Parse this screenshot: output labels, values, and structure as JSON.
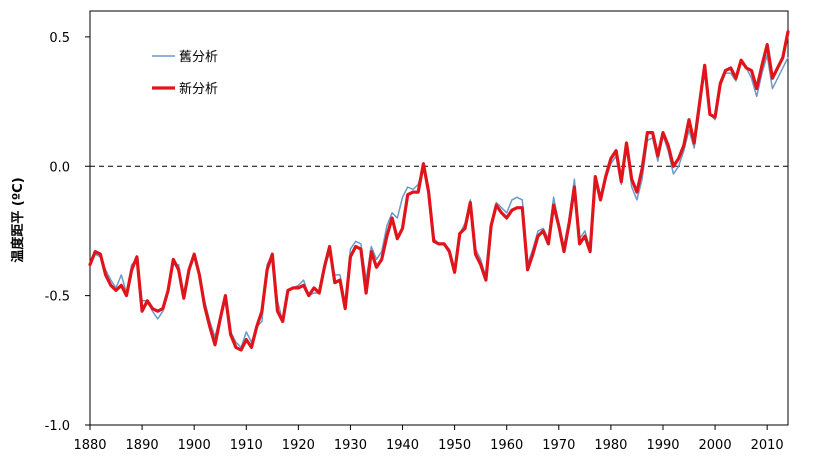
{
  "chart_data": {
    "type": "line",
    "title": "",
    "xlabel": "",
    "ylabel": "温度距平 (ºC)",
    "xlim": [
      1880,
      2014
    ],
    "ylim": [
      -1.0,
      0.6
    ],
    "x_ticks": [
      1880,
      1890,
      1900,
      1910,
      1920,
      1930,
      1940,
      1950,
      1960,
      1970,
      1980,
      1990,
      2000,
      2010
    ],
    "y_ticks": [
      {
        "value": 0.5,
        "label": "0.5"
      },
      {
        "value": 0.0,
        "label": "0.0"
      },
      {
        "value": -0.5,
        "label": "-0.5"
      },
      {
        "value": -1.0,
        "label": "-1.0"
      }
    ],
    "reference_line": {
      "y": 0.0,
      "style": "dashed",
      "color": "#000000"
    },
    "legend_position": "top-left",
    "grid": false,
    "series": [
      {
        "name": "舊分析",
        "color": "#6a9ac8",
        "points": [
          [
            1880,
            -0.38
          ],
          [
            1881,
            -0.34
          ],
          [
            1882,
            -0.35
          ],
          [
            1883,
            -0.4
          ],
          [
            1884,
            -0.44
          ],
          [
            1885,
            -0.47
          ],
          [
            1886,
            -0.42
          ],
          [
            1887,
            -0.49
          ],
          [
            1888,
            -0.38
          ],
          [
            1889,
            -0.36
          ],
          [
            1890,
            -0.52
          ],
          [
            1891,
            -0.52
          ],
          [
            1892,
            -0.56
          ],
          [
            1893,
            -0.59
          ],
          [
            1894,
            -0.56
          ],
          [
            1895,
            -0.49
          ],
          [
            1896,
            -0.38
          ],
          [
            1897,
            -0.38
          ],
          [
            1898,
            -0.5
          ],
          [
            1899,
            -0.4
          ],
          [
            1900,
            -0.34
          ],
          [
            1901,
            -0.42
          ],
          [
            1902,
            -0.52
          ],
          [
            1903,
            -0.6
          ],
          [
            1904,
            -0.66
          ],
          [
            1905,
            -0.58
          ],
          [
            1906,
            -0.5
          ],
          [
            1907,
            -0.64
          ],
          [
            1908,
            -0.68
          ],
          [
            1909,
            -0.7
          ],
          [
            1910,
            -0.64
          ],
          [
            1911,
            -0.68
          ],
          [
            1912,
            -0.62
          ],
          [
            1913,
            -0.6
          ],
          [
            1914,
            -0.38
          ],
          [
            1915,
            -0.34
          ],
          [
            1916,
            -0.52
          ],
          [
            1917,
            -0.6
          ],
          [
            1918,
            -0.48
          ],
          [
            1919,
            -0.47
          ],
          [
            1920,
            -0.46
          ],
          [
            1921,
            -0.44
          ],
          [
            1922,
            -0.5
          ],
          [
            1923,
            -0.49
          ],
          [
            1924,
            -0.49
          ],
          [
            1925,
            -0.38
          ],
          [
            1926,
            -0.34
          ],
          [
            1927,
            -0.42
          ],
          [
            1928,
            -0.42
          ],
          [
            1929,
            -0.53
          ],
          [
            1930,
            -0.32
          ],
          [
            1931,
            -0.29
          ],
          [
            1932,
            -0.3
          ],
          [
            1933,
            -0.44
          ],
          [
            1934,
            -0.31
          ],
          [
            1935,
            -0.36
          ],
          [
            1936,
            -0.33
          ],
          [
            1937,
            -0.23
          ],
          [
            1938,
            -0.18
          ],
          [
            1939,
            -0.2
          ],
          [
            1940,
            -0.12
          ],
          [
            1941,
            -0.08
          ],
          [
            1942,
            -0.09
          ],
          [
            1943,
            -0.07
          ],
          [
            1944,
            0.0
          ],
          [
            1945,
            -0.08
          ],
          [
            1946,
            -0.28
          ],
          [
            1947,
            -0.3
          ],
          [
            1948,
            -0.3
          ],
          [
            1949,
            -0.32
          ],
          [
            1950,
            -0.4
          ],
          [
            1951,
            -0.26
          ],
          [
            1952,
            -0.22
          ],
          [
            1953,
            -0.13
          ],
          [
            1954,
            -0.32
          ],
          [
            1955,
            -0.36
          ],
          [
            1956,
            -0.43
          ],
          [
            1957,
            -0.22
          ],
          [
            1958,
            -0.14
          ],
          [
            1959,
            -0.16
          ],
          [
            1960,
            -0.18
          ],
          [
            1961,
            -0.13
          ],
          [
            1962,
            -0.12
          ],
          [
            1963,
            -0.13
          ],
          [
            1964,
            -0.38
          ],
          [
            1965,
            -0.32
          ],
          [
            1966,
            -0.25
          ],
          [
            1967,
            -0.24
          ],
          [
            1968,
            -0.28
          ],
          [
            1969,
            -0.12
          ],
          [
            1970,
            -0.22
          ],
          [
            1971,
            -0.31
          ],
          [
            1972,
            -0.2
          ],
          [
            1973,
            -0.05
          ],
          [
            1974,
            -0.28
          ],
          [
            1975,
            -0.25
          ],
          [
            1976,
            -0.32
          ],
          [
            1977,
            -0.06
          ],
          [
            1978,
            -0.11
          ],
          [
            1979,
            -0.05
          ],
          [
            1980,
            0.01
          ],
          [
            1981,
            0.04
          ],
          [
            1982,
            -0.07
          ],
          [
            1983,
            0.08
          ],
          [
            1984,
            -0.08
          ],
          [
            1985,
            -0.13
          ],
          [
            1986,
            -0.05
          ],
          [
            1987,
            0.1
          ],
          [
            1988,
            0.11
          ],
          [
            1989,
            0.02
          ],
          [
            1990,
            0.12
          ],
          [
            1991,
            0.06
          ],
          [
            1992,
            -0.03
          ],
          [
            1993,
            0.0
          ],
          [
            1994,
            0.06
          ],
          [
            1995,
            0.14
          ],
          [
            1996,
            0.07
          ],
          [
            1997,
            0.21
          ],
          [
            1998,
            0.38
          ],
          [
            1999,
            0.2
          ],
          [
            2000,
            0.18
          ],
          [
            2001,
            0.31
          ],
          [
            2002,
            0.36
          ],
          [
            2003,
            0.36
          ],
          [
            2004,
            0.33
          ],
          [
            2005,
            0.4
          ],
          [
            2006,
            0.38
          ],
          [
            2007,
            0.34
          ],
          [
            2008,
            0.27
          ],
          [
            2009,
            0.36
          ],
          [
            2010,
            0.43
          ],
          [
            2011,
            0.3
          ],
          [
            2012,
            0.34
          ],
          [
            2013,
            0.38
          ],
          [
            2014,
            0.42
          ]
        ]
      },
      {
        "name": "新分析",
        "color": "#e0151b",
        "points": [
          [
            1880,
            -0.38
          ],
          [
            1881,
            -0.33
          ],
          [
            1882,
            -0.34
          ],
          [
            1883,
            -0.42
          ],
          [
            1884,
            -0.46
          ],
          [
            1885,
            -0.48
          ],
          [
            1886,
            -0.46
          ],
          [
            1887,
            -0.5
          ],
          [
            1888,
            -0.4
          ],
          [
            1889,
            -0.35
          ],
          [
            1890,
            -0.56
          ],
          [
            1891,
            -0.52
          ],
          [
            1892,
            -0.55
          ],
          [
            1893,
            -0.56
          ],
          [
            1894,
            -0.55
          ],
          [
            1895,
            -0.48
          ],
          [
            1896,
            -0.36
          ],
          [
            1897,
            -0.4
          ],
          [
            1898,
            -0.51
          ],
          [
            1899,
            -0.4
          ],
          [
            1900,
            -0.34
          ],
          [
            1901,
            -0.42
          ],
          [
            1902,
            -0.54
          ],
          [
            1903,
            -0.62
          ],
          [
            1904,
            -0.69
          ],
          [
            1905,
            -0.59
          ],
          [
            1906,
            -0.5
          ],
          [
            1907,
            -0.65
          ],
          [
            1908,
            -0.7
          ],
          [
            1909,
            -0.71
          ],
          [
            1910,
            -0.67
          ],
          [
            1911,
            -0.7
          ],
          [
            1912,
            -0.62
          ],
          [
            1913,
            -0.56
          ],
          [
            1914,
            -0.4
          ],
          [
            1915,
            -0.34
          ],
          [
            1916,
            -0.56
          ],
          [
            1917,
            -0.6
          ],
          [
            1918,
            -0.48
          ],
          [
            1919,
            -0.47
          ],
          [
            1920,
            -0.47
          ],
          [
            1921,
            -0.46
          ],
          [
            1922,
            -0.5
          ],
          [
            1923,
            -0.47
          ],
          [
            1924,
            -0.49
          ],
          [
            1925,
            -0.39
          ],
          [
            1926,
            -0.31
          ],
          [
            1927,
            -0.45
          ],
          [
            1928,
            -0.44
          ],
          [
            1929,
            -0.55
          ],
          [
            1930,
            -0.35
          ],
          [
            1931,
            -0.31
          ],
          [
            1932,
            -0.32
          ],
          [
            1933,
            -0.49
          ],
          [
            1934,
            -0.33
          ],
          [
            1935,
            -0.39
          ],
          [
            1936,
            -0.36
          ],
          [
            1937,
            -0.27
          ],
          [
            1938,
            -0.2
          ],
          [
            1939,
            -0.28
          ],
          [
            1940,
            -0.24
          ],
          [
            1941,
            -0.11
          ],
          [
            1942,
            -0.1
          ],
          [
            1943,
            -0.1
          ],
          [
            1944,
            0.01
          ],
          [
            1945,
            -0.1
          ],
          [
            1946,
            -0.29
          ],
          [
            1947,
            -0.3
          ],
          [
            1948,
            -0.3
          ],
          [
            1949,
            -0.33
          ],
          [
            1950,
            -0.41
          ],
          [
            1951,
            -0.26
          ],
          [
            1952,
            -0.24
          ],
          [
            1953,
            -0.14
          ],
          [
            1954,
            -0.34
          ],
          [
            1955,
            -0.38
          ],
          [
            1956,
            -0.44
          ],
          [
            1957,
            -0.23
          ],
          [
            1958,
            -0.15
          ],
          [
            1959,
            -0.18
          ],
          [
            1960,
            -0.2
          ],
          [
            1961,
            -0.17
          ],
          [
            1962,
            -0.16
          ],
          [
            1963,
            -0.16
          ],
          [
            1964,
            -0.4
          ],
          [
            1965,
            -0.34
          ],
          [
            1966,
            -0.27
          ],
          [
            1967,
            -0.25
          ],
          [
            1968,
            -0.3
          ],
          [
            1969,
            -0.15
          ],
          [
            1970,
            -0.23
          ],
          [
            1971,
            -0.33
          ],
          [
            1972,
            -0.22
          ],
          [
            1973,
            -0.08
          ],
          [
            1974,
            -0.3
          ],
          [
            1975,
            -0.27
          ],
          [
            1976,
            -0.33
          ],
          [
            1977,
            -0.04
          ],
          [
            1978,
            -0.13
          ],
          [
            1979,
            -0.04
          ],
          [
            1980,
            0.03
          ],
          [
            1981,
            0.06
          ],
          [
            1982,
            -0.06
          ],
          [
            1983,
            0.09
          ],
          [
            1984,
            -0.05
          ],
          [
            1985,
            -0.1
          ],
          [
            1986,
            -0.01
          ],
          [
            1987,
            0.13
          ],
          [
            1988,
            0.13
          ],
          [
            1989,
            0.04
          ],
          [
            1990,
            0.13
          ],
          [
            1991,
            0.08
          ],
          [
            1992,
            0.0
          ],
          [
            1993,
            0.03
          ],
          [
            1994,
            0.08
          ],
          [
            1995,
            0.18
          ],
          [
            1996,
            0.09
          ],
          [
            1997,
            0.24
          ],
          [
            1998,
            0.39
          ],
          [
            1999,
            0.2
          ],
          [
            2000,
            0.19
          ],
          [
            2001,
            0.32
          ],
          [
            2002,
            0.37
          ],
          [
            2003,
            0.38
          ],
          [
            2004,
            0.34
          ],
          [
            2005,
            0.41
          ],
          [
            2006,
            0.38
          ],
          [
            2007,
            0.37
          ],
          [
            2008,
            0.3
          ],
          [
            2009,
            0.39
          ],
          [
            2010,
            0.47
          ],
          [
            2011,
            0.34
          ],
          [
            2012,
            0.38
          ],
          [
            2013,
            0.42
          ],
          [
            2014,
            0.52
          ]
        ]
      }
    ]
  }
}
